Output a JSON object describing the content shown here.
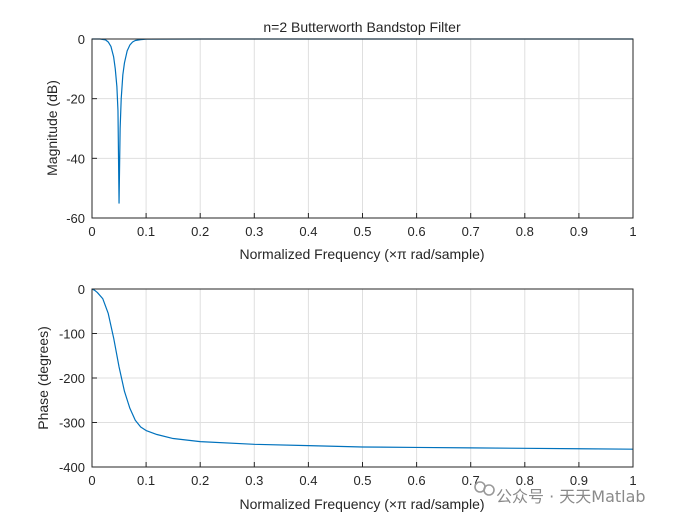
{
  "watermark": {
    "text": "公众号 · 天天Matlab",
    "icon": "wechat-channel-icon"
  },
  "chart_data": [
    {
      "type": "line",
      "title": "n=2 Butterworth Bandstop Filter",
      "xlabel": "Normalized Frequency  (×π rad/sample)",
      "ylabel": "Magnitude (dB)",
      "xlim": [
        0,
        1
      ],
      "ylim": [
        -60,
        0
      ],
      "xticks": [
        0,
        0.1,
        0.2,
        0.3,
        0.4,
        0.5,
        0.6,
        0.7,
        0.8,
        0.9,
        1
      ],
      "yticks": [
        -60,
        -40,
        -20,
        0
      ],
      "grid": true,
      "color": "#0072bd",
      "series": [
        {
          "x": [
            0,
            0.015,
            0.025,
            0.03,
            0.035,
            0.04,
            0.043,
            0.046,
            0.048,
            0.05,
            0.052,
            0.054,
            0.057,
            0.06,
            0.065,
            0.07,
            0.075,
            0.08,
            0.09,
            0.1,
            0.2,
            0.4,
            0.6,
            0.8,
            1
          ],
          "y": [
            0,
            0,
            -0.3,
            -1,
            -2.5,
            -6,
            -10,
            -16,
            -24,
            -55,
            -30,
            -20,
            -12,
            -8,
            -4,
            -2,
            -1,
            -0.5,
            -0.2,
            -0.05,
            0,
            0,
            0,
            0,
            0
          ]
        }
      ]
    },
    {
      "type": "line",
      "title": "",
      "xlabel": "Normalized Frequency  (×π rad/sample)",
      "ylabel": "Phase (degrees)",
      "xlim": [
        0,
        1
      ],
      "ylim": [
        -400,
        0
      ],
      "xticks": [
        0,
        0.1,
        0.2,
        0.3,
        0.4,
        0.5,
        0.6,
        0.7,
        0.8,
        0.9,
        1
      ],
      "yticks": [
        -400,
        -300,
        -200,
        -100,
        0
      ],
      "grid": true,
      "color": "#0072bd",
      "series": [
        {
          "x": [
            0,
            0.005,
            0.01,
            0.02,
            0.03,
            0.04,
            0.05,
            0.06,
            0.07,
            0.08,
            0.09,
            0.1,
            0.12,
            0.15,
            0.2,
            0.3,
            0.4,
            0.5,
            0.6,
            0.7,
            0.8,
            0.9,
            1
          ],
          "y": [
            0,
            -3,
            -8,
            -22,
            -55,
            -110,
            -175,
            -230,
            -268,
            -295,
            -310,
            -318,
            -327,
            -336,
            -343,
            -349,
            -352,
            -355,
            -356,
            -357,
            -358,
            -359,
            -360
          ]
        }
      ]
    }
  ]
}
